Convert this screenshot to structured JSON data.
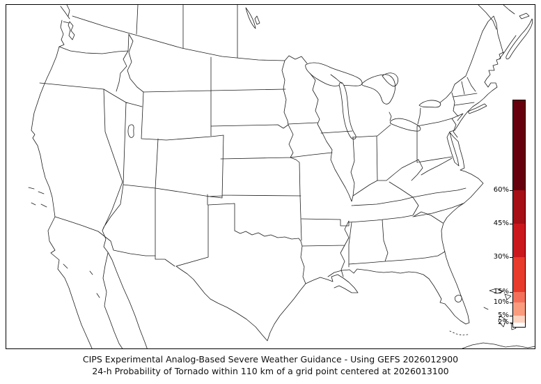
{
  "figure": {
    "background_color": "#ffffff",
    "map_region": "CONUS with state borders, southern Canada, northern Mexico, Cuba and Bahamas"
  },
  "caption": {
    "line1": "CIPS Experimental Analog-Based Severe Weather Guidance - Using GEFS 2026012900",
    "line2": "24-h Probability of Tornado within 110 km of a grid point centered at 2026013100"
  },
  "colorbar": {
    "units": "%",
    "ticks": [
      {
        "label": "60%",
        "offset": 129
      },
      {
        "label": "45%",
        "offset": 177
      },
      {
        "label": "30%",
        "offset": 225
      },
      {
        "label": "15%",
        "offset": 275
      },
      {
        "label": "10%",
        "offset": 290
      },
      {
        "label": "5%",
        "offset": 309
      },
      {
        "label": "2%",
        "offset": 319
      }
    ],
    "segments": [
      {
        "range": ">60%",
        "color": "#67000d",
        "height": 129
      },
      {
        "range": "45-60%",
        "color": "#a50f15",
        "height": 48
      },
      {
        "range": "30-45%",
        "color": "#cb181d",
        "height": 48
      },
      {
        "range": "15-30%",
        "color": "#e83b2c",
        "height": 50
      },
      {
        "range": "10-15%",
        "color": "#f4705b",
        "height": 15
      },
      {
        "range": "5-10%",
        "color": "#fa9b7d",
        "height": 19
      },
      {
        "range": "2-5%",
        "color": "#fdd3c0",
        "height": 10
      },
      {
        "range": "0-2%",
        "color": "#ffffff",
        "height": 6
      }
    ]
  },
  "map_style": {
    "line_color": "#1c1c1c",
    "land_color": "#ffffff",
    "water_color": "#ffffff"
  }
}
